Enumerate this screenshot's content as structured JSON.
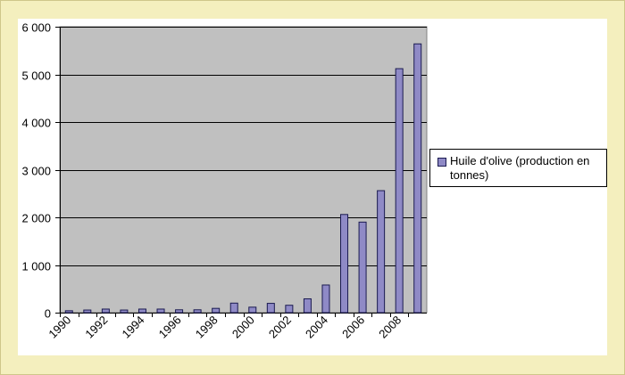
{
  "chart_data": {
    "type": "bar",
    "categories": [
      "1990",
      "1991",
      "1992",
      "1993",
      "1994",
      "1995",
      "1996",
      "1997",
      "1998",
      "1999",
      "2000",
      "2001",
      "2002",
      "2003",
      "2004",
      "2005",
      "2006",
      "2007",
      "2008",
      "2009"
    ],
    "x_tick_labels": [
      "1990",
      "1992",
      "1994",
      "1996",
      "1998",
      "2000",
      "2002",
      "2004",
      "2006",
      "2008"
    ],
    "series": [
      {
        "name": "Huile d'olive (production en tonnes)",
        "values": [
          40,
          55,
          75,
          55,
          75,
          75,
          60,
          60,
          90,
          200,
          115,
          195,
          155,
          290,
          580,
          2060,
          1900,
          2560,
          5120,
          5640
        ]
      }
    ],
    "y_tick_labels": [
      "0",
      "1 000",
      "2 000",
      "3 000",
      "4 000",
      "5 000",
      "6 000"
    ],
    "ylim": [
      0,
      6000
    ],
    "y_step": 1000,
    "grid": true,
    "legend_position": "right",
    "colors": {
      "bar_fill": "#8f8ac6",
      "bar_stroke": "#1a1a50",
      "plot_bg": "#c0c0c0",
      "page_bg": "#f4efbe"
    }
  }
}
